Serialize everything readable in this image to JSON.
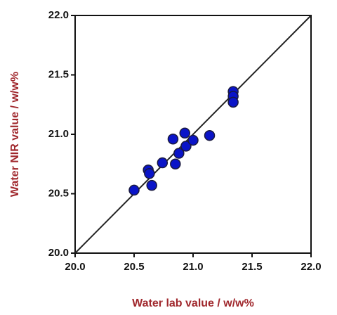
{
  "chart_data": {
    "type": "scatter",
    "x_label": "Water lab value / w/w%",
    "y_label": "Water NIR value / w/w%",
    "color": "#0a14c8",
    "x": [
      20.5,
      20.62,
      20.63,
      20.65,
      20.74,
      20.83,
      20.85,
      20.88,
      20.93,
      20.94,
      21.0,
      21.14,
      21.34,
      21.34,
      21.34
    ],
    "y": [
      20.53,
      20.7,
      20.67,
      20.57,
      20.76,
      20.96,
      20.75,
      20.84,
      21.01,
      20.9,
      20.95,
      20.99,
      21.36,
      21.32,
      21.27
    ],
    "xlim": [
      20,
      22
    ],
    "ylim": [
      20,
      22
    ],
    "xticks": [
      {
        "value": 20,
        "label": "20.0"
      },
      {
        "value": 20.5,
        "label": "20.5"
      },
      {
        "value": 21,
        "label": "21.0"
      },
      {
        "value": 21.5,
        "label": "21.5"
      },
      {
        "value": 22,
        "label": "22.0"
      }
    ],
    "yticks": [
      {
        "value": 20,
        "label": "20.0"
      },
      {
        "value": 20.5,
        "label": "20.5"
      },
      {
        "value": 21,
        "label": "21.0"
      },
      {
        "value": 21.5,
        "label": "21.5"
      },
      {
        "value": 22,
        "label": "22.0"
      }
    ],
    "grid": false
  }
}
